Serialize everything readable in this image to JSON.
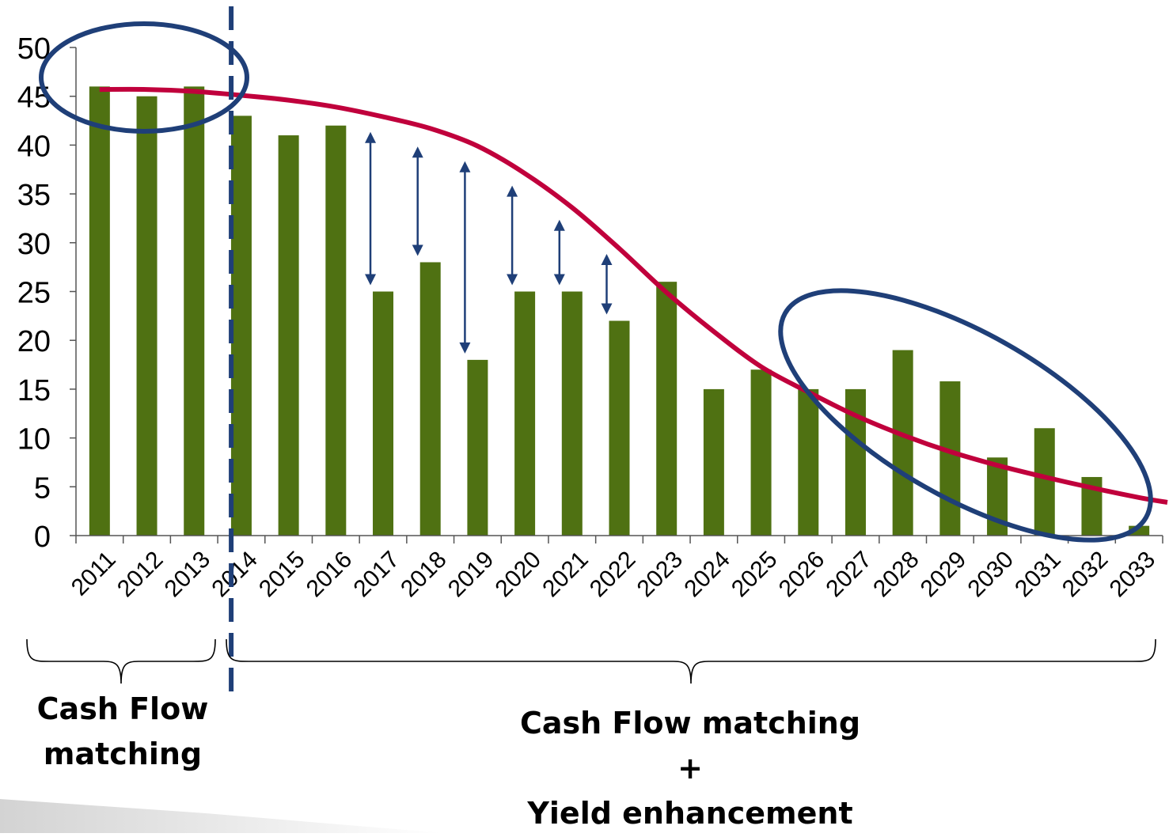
{
  "chart_data": {
    "type": "bar",
    "title": "",
    "xlabel": "",
    "ylabel": "",
    "ylim": [
      0,
      50
    ],
    "yticks": [
      "0",
      "5",
      "10",
      "15",
      "20",
      "25",
      "30",
      "35",
      "40",
      "45",
      "50"
    ],
    "categories": [
      "2011",
      "2012",
      "2013",
      "2014",
      "2015",
      "2016",
      "2017",
      "2018",
      "2019",
      "2020",
      "2021",
      "2022",
      "2023",
      "2024",
      "2025",
      "2026",
      "2027",
      "2028",
      "2029",
      "2030",
      "2031",
      "2032",
      "2033"
    ],
    "series": [
      {
        "type": "bar",
        "color": "#4f7112",
        "values": [
          46,
          45,
          46,
          43,
          41,
          42,
          25,
          28,
          18,
          25,
          25,
          22,
          26,
          15,
          17,
          15,
          15,
          19,
          15.8,
          8,
          11,
          6,
          1
        ]
      },
      {
        "type": "line",
        "color": "#c0003c",
        "values": [
          45.7,
          45.7,
          45.5,
          45.1,
          44.6,
          43.9,
          42.9,
          41.7,
          39.9,
          37.1,
          33.6,
          29.4,
          24.9,
          20.9,
          17.3,
          14.7,
          12.3,
          10.3,
          8.6,
          7.2,
          6.0,
          4.9,
          3.9
        ]
      }
    ],
    "gap_arrows": [
      {
        "category": "2017",
        "from": 25,
        "to": 42
      },
      {
        "category": "2018",
        "from": 28,
        "to": 40.5
      },
      {
        "category": "2019",
        "from": 18,
        "to": 39
      },
      {
        "category": "2020",
        "from": 25,
        "to": 36.5
      },
      {
        "category": "2021",
        "from": 25,
        "to": 33
      },
      {
        "category": "2022",
        "from": 22,
        "to": 29.5
      }
    ],
    "divider_after": "2013",
    "grid": false,
    "legend": "none",
    "annotations": {
      "left_label_line1": "Cash Flow",
      "left_label_line2": "matching",
      "right_label_line1": "Cash Flow matching",
      "right_label_line2": "+",
      "right_label_line3": "Yield enhancement"
    },
    "colors": {
      "accent_blue": "#1f3f78",
      "axis": "#555555"
    }
  }
}
